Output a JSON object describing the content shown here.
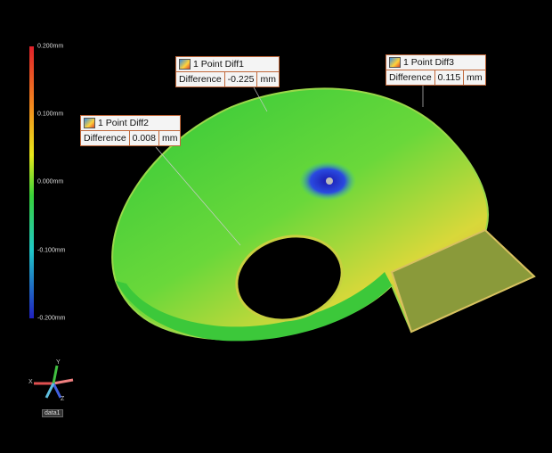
{
  "color_scale": {
    "labels": [
      "0.200mm",
      "0.100mm",
      "0.000mm",
      "-0.100mm",
      "-0.200mm"
    ]
  },
  "annotations": [
    {
      "title": "1 Point Diff1",
      "field": "Difference",
      "value": "-0.225",
      "unit": "mm"
    },
    {
      "title": "1 Point Diff2",
      "field": "Difference",
      "value": "0.008",
      "unit": "mm"
    },
    {
      "title": "1 Point Diff3",
      "field": "Difference",
      "value": "0.115",
      "unit": "mm"
    }
  ],
  "triad": {
    "x": "X",
    "y": "Y",
    "z": "Z"
  },
  "dataset": "data1"
}
